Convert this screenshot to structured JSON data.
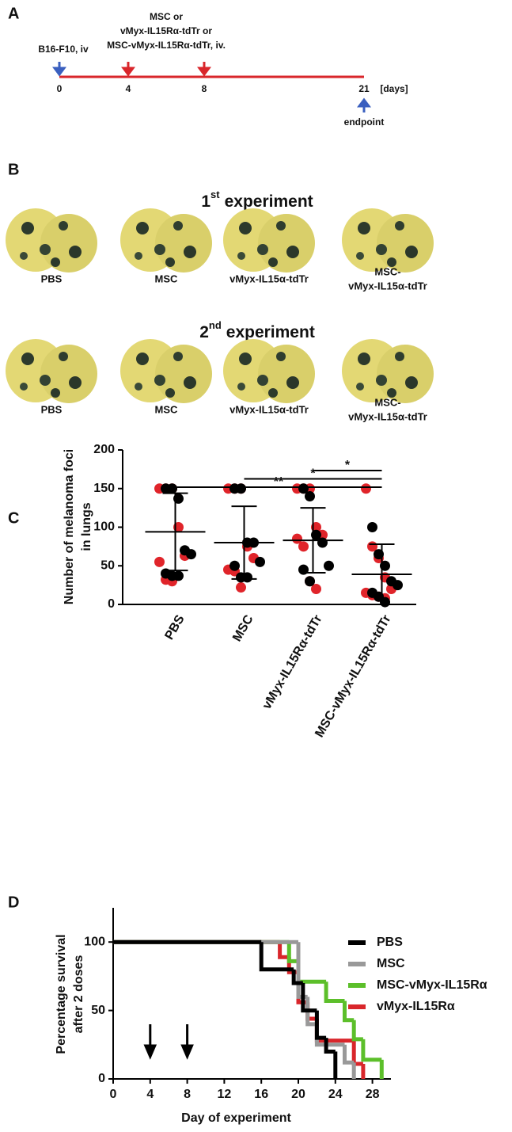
{
  "panel_labels": [
    "A",
    "B",
    "C",
    "D"
  ],
  "timeline": {
    "injection": "B16-F10, iv",
    "treatment": [
      "MSC or",
      "vMyx-IL15Rα-tdTr or",
      "MSC-vMyx-IL15Rα-tdTr, iv."
    ],
    "ticks": [
      "0",
      "4",
      "8",
      "21"
    ],
    "unit": "[days]",
    "endpoint": "endpoint"
  },
  "photos": {
    "experiments": [
      {
        "number": "1",
        "suffix": "st",
        "text": "experiment",
        "labels": [
          [
            "PBS"
          ],
          [
            "MSC"
          ],
          [
            "vMyx-IL15α-tdTr"
          ],
          [
            "MSC-",
            "vMyx-IL15α-tdTr"
          ]
        ]
      },
      {
        "number": "2",
        "suffix": "nd",
        "text": "experiment",
        "labels": [
          [
            "PBS"
          ],
          [
            "MSC"
          ],
          [
            "vMyx-IL15α-tdTr"
          ],
          [
            "MSC-",
            "vMyx-IL15α-tdTr"
          ]
        ]
      }
    ]
  },
  "chart_data": [
    {
      "type": "strip",
      "ylabel": [
        "Number of melanoma foci",
        "in lungs"
      ],
      "categories": [
        "PBS",
        "MSC",
        "vMyx-IL15Rα-tdTr",
        "MSC-vMyx-IL15Rα-tdTr"
      ],
      "ylim": [
        0,
        200
      ],
      "yticks": [
        0,
        50,
        100,
        150,
        200
      ],
      "series": [
        {
          "color": "#e0242a",
          "values": [
            [
              150,
              150,
              150,
              100,
              63,
              55,
              32,
              30
            ],
            [
              150,
              150,
              150,
              75,
              60,
              45,
              43,
              22
            ],
            [
              150,
              150,
              150,
              100,
              90,
              85,
              75,
              30,
              20
            ],
            [
              150,
              75,
              60,
              35,
              20,
              15,
              12,
              10,
              8
            ]
          ]
        },
        {
          "color": "#000000",
          "values": [
            [
              150,
              150,
              137,
              70,
              65,
              40,
              37,
              37
            ],
            [
              150,
              150,
              80,
              80,
              55,
              50,
              35,
              35
            ],
            [
              150,
              140,
              90,
              80,
              50,
              45,
              30
            ],
            [
              100,
              65,
              50,
              30,
              25,
              15,
              10,
              3
            ]
          ]
        }
      ],
      "means": [
        94,
        80,
        83,
        39
      ],
      "sd": [
        50,
        47,
        42,
        39
      ],
      "annotations": [
        {
          "text": "*",
          "from": 2,
          "to": 3
        },
        {
          "text": "*",
          "from": 1,
          "to": 3
        },
        {
          "text": "**",
          "from": 0,
          "to": 3
        }
      ]
    },
    {
      "type": "step",
      "xlabel": "Day of experiment",
      "ylabel": [
        "Percentage survival",
        "after 2 doses"
      ],
      "xlim": [
        0,
        30
      ],
      "ylim": [
        0,
        125
      ],
      "xticks": [
        0,
        4,
        8,
        12,
        16,
        20,
        24,
        28
      ],
      "yticks": [
        0,
        50,
        100
      ],
      "arrows": [
        4,
        8
      ],
      "series": [
        {
          "name": "PBS",
          "color": "#000000",
          "x": [
            0,
            16,
            19.5,
            20.5,
            22,
            23,
            24
          ],
          "values": [
            100,
            80,
            70,
            50,
            30,
            20,
            0
          ]
        },
        {
          "name": "MSC",
          "color": "#999999",
          "x": [
            0,
            20,
            21,
            22,
            25,
            26
          ],
          "values": [
            100,
            60,
            40,
            25,
            12,
            0
          ]
        },
        {
          "name": "MSC-vMyx-IL15Rα",
          "color": "#5cbf2a",
          "x": [
            0,
            19,
            20,
            23,
            25,
            26,
            27,
            29
          ],
          "values": [
            100,
            86,
            71,
            57,
            43,
            29,
            14,
            0
          ]
        },
        {
          "name": "vMyx-IL15Rα",
          "color": "#d9262b",
          "x": [
            0,
            18,
            19,
            20,
            21,
            22,
            26,
            27
          ],
          "values": [
            100,
            89,
            78,
            56,
            44,
            28,
            11,
            0
          ]
        }
      ]
    }
  ]
}
